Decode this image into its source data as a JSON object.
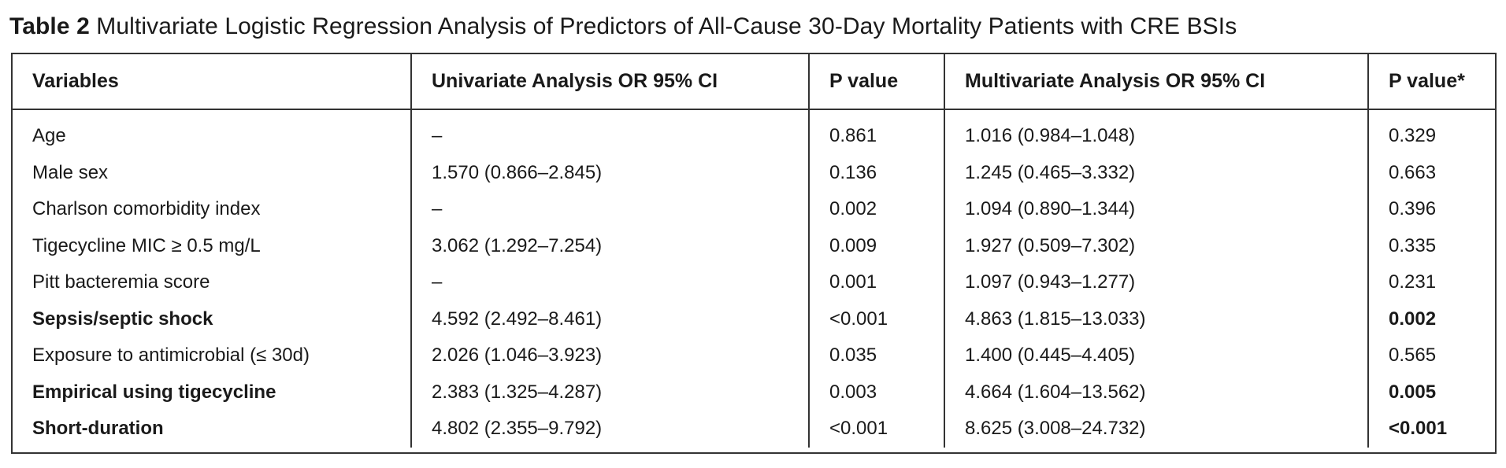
{
  "caption": {
    "label": "Table 2",
    "text": "Multivariate Logistic Regression Analysis of Predictors of All-Cause 30-Day Mortality Patients with CRE BSIs"
  },
  "table": {
    "headers": [
      "Variables",
      "Univariate Analysis OR 95% CI",
      "P value",
      "Multivariate Analysis OR 95% CI",
      "P value*"
    ],
    "rows": [
      {
        "variable": "Age",
        "uni_or": "–",
        "uni_p": "0.861",
        "multi_or": "1.016 (0.984–1.048)",
        "multi_p": "0.329",
        "variable_bold": false,
        "multi_p_bold": false
      },
      {
        "variable": "Male sex",
        "uni_or": "1.570 (0.866–2.845)",
        "uni_p": "0.136",
        "multi_or": "1.245 (0.465–3.332)",
        "multi_p": "0.663",
        "variable_bold": false,
        "multi_p_bold": false
      },
      {
        "variable": "Charlson comorbidity index",
        "uni_or": "–",
        "uni_p": "0.002",
        "multi_or": "1.094 (0.890–1.344)",
        "multi_p": "0.396",
        "variable_bold": false,
        "multi_p_bold": false
      },
      {
        "variable": "Tigecycline MIC ≥ 0.5 mg/L",
        "uni_or": "3.062 (1.292–7.254)",
        "uni_p": "0.009",
        "multi_or": "1.927 (0.509–7.302)",
        "multi_p": "0.335",
        "variable_bold": false,
        "multi_p_bold": false
      },
      {
        "variable": "Pitt bacteremia score",
        "uni_or": "–",
        "uni_p": "0.001",
        "multi_or": "1.097 (0.943–1.277)",
        "multi_p": "0.231",
        "variable_bold": false,
        "multi_p_bold": false
      },
      {
        "variable": "Sepsis/septic shock",
        "uni_or": "4.592 (2.492–8.461)",
        "uni_p": "<0.001",
        "multi_or": "4.863 (1.815–13.033)",
        "multi_p": "0.002",
        "variable_bold": true,
        "multi_p_bold": true
      },
      {
        "variable": "Exposure to antimicrobial (≤ 30d)",
        "uni_or": "2.026 (1.046–3.923)",
        "uni_p": "0.035",
        "multi_or": "1.400 (0.445–4.405)",
        "multi_p": "0.565",
        "variable_bold": false,
        "multi_p_bold": false
      },
      {
        "variable": "Empirical using tigecycline",
        "uni_or": "2.383 (1.325–4.287)",
        "uni_p": "0.003",
        "multi_or": "4.664 (1.604–13.562)",
        "multi_p": "0.005",
        "variable_bold": true,
        "multi_p_bold": true
      },
      {
        "variable": "Short-duration",
        "uni_or": "4.802 (2.355–9.792)",
        "uni_p": "<0.001",
        "multi_or": "8.625 (3.008–24.732)",
        "multi_p": "<0.001",
        "variable_bold": true,
        "multi_p_bold": true
      }
    ]
  }
}
